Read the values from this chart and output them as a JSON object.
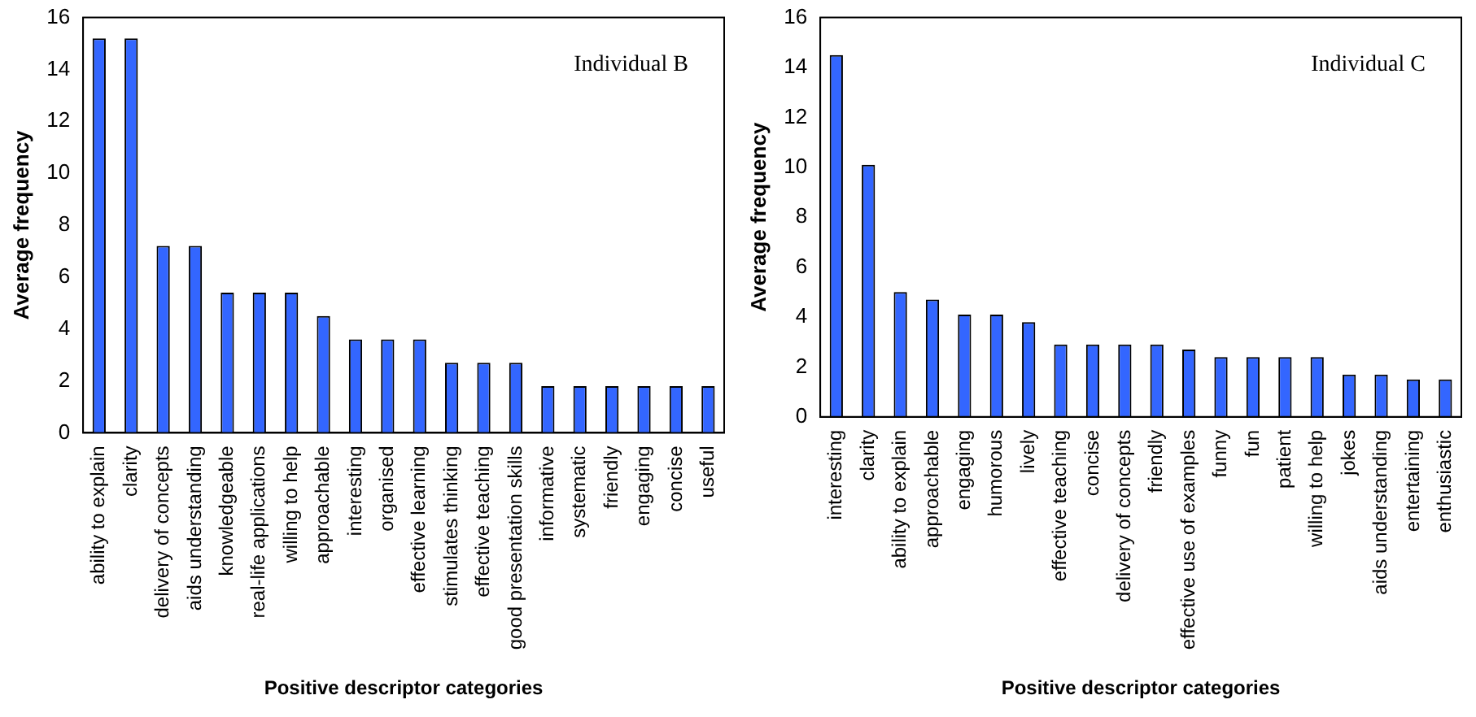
{
  "chart_data": [
    {
      "type": "bar",
      "xlabel": "Positive descriptor categories",
      "ylabel": "Average frequency",
      "annotations": [
        "Individual B"
      ],
      "categories": [
        "ability to explain",
        "clarity",
        "delivery of concepts",
        "aids understanding",
        "knowledgeable",
        "real-life applications",
        "willing to help",
        "approachable",
        "interesting",
        "organised",
        "effective learning",
        "stimulates thinking",
        "effective teaching",
        "good presentation skills",
        "informative",
        "systematic",
        "friendly",
        "engaging",
        "concise",
        "useful"
      ],
      "values": [
        15.2,
        15.2,
        7.2,
        7.2,
        5.4,
        5.4,
        5.4,
        4.5,
        3.6,
        3.6,
        3.6,
        2.7,
        2.7,
        2.7,
        1.8,
        1.8,
        1.8,
        1.8,
        1.8,
        1.8
      ],
      "color": "#3366ff",
      "ylim": [
        0,
        16
      ],
      "yticks": [
        0,
        2,
        4,
        6,
        8,
        10,
        12,
        14,
        16
      ],
      "grid": false,
      "legend": false
    },
    {
      "type": "bar",
      "xlabel": "Positive descriptor categories",
      "ylabel": "Average frequency",
      "annotations": [
        "Individual C"
      ],
      "categories": [
        "interesting",
        "clarity",
        "ability to explain",
        "approachable",
        "engaging",
        "humorous",
        "lively",
        "effective teaching",
        "concise",
        "delivery of concepts",
        "friendly",
        "effective use of examples",
        "funny",
        "fun",
        "patient",
        "willing to help",
        "jokes",
        "aids understanding",
        "entertaining",
        "enthusiastic"
      ],
      "values": [
        14.5,
        10.1,
        5.0,
        4.7,
        4.1,
        4.1,
        3.8,
        2.9,
        2.9,
        2.9,
        2.9,
        2.7,
        2.4,
        2.4,
        2.4,
        2.4,
        1.7,
        1.7,
        1.5,
        1.5
      ],
      "color": "#3366ff",
      "ylim": [
        0,
        16
      ],
      "yticks": [
        0,
        2,
        4,
        6,
        8,
        10,
        12,
        14,
        16
      ],
      "grid": false,
      "legend": false
    }
  ]
}
